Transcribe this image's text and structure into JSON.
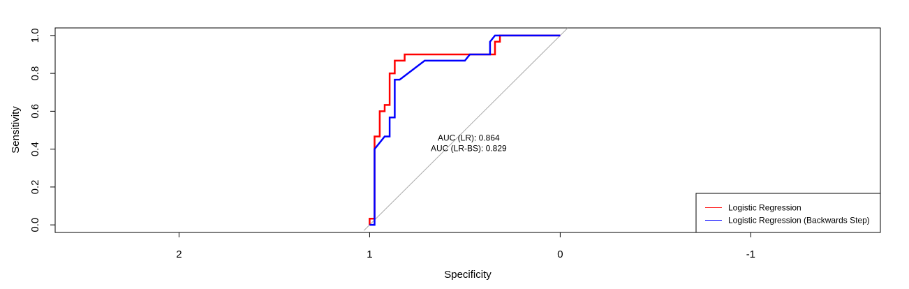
{
  "chart_data": {
    "type": "line",
    "title": "",
    "xlabel": "Specificity",
    "ylabel": "Sensitivity",
    "x_reversed": true,
    "xlim": [
      2.65,
      -1.68
    ],
    "ylim": [
      -0.04,
      1.04
    ],
    "xticks": [
      2,
      1,
      0,
      -1
    ],
    "xtick_labels": [
      "2",
      "1",
      "0",
      "-1"
    ],
    "yticks": [
      0.0,
      0.2,
      0.4,
      0.6,
      0.8,
      1.0
    ],
    "ytick_labels": [
      "0.0",
      "0.2",
      "0.4",
      "0.6",
      "0.8",
      "1.0"
    ],
    "grid": false,
    "legend_position": "bottom-right",
    "annotations": [
      {
        "text": "AUC (LR):  0.864",
        "x": 0.48,
        "y": 0.46
      },
      {
        "text": "AUC (LR-BS):  0.829",
        "x": 0.48,
        "y": 0.405
      }
    ],
    "reference_line": {
      "color": "#aaaaaa",
      "from": [
        1,
        0
      ],
      "to": [
        0,
        1
      ]
    },
    "series": [
      {
        "name": "Logistic Regression",
        "color": "#ff0000",
        "points": [
          [
            1.0,
            0.0
          ],
          [
            1.0,
            0.033
          ],
          [
            0.974,
            0.033
          ],
          [
            0.974,
            0.467
          ],
          [
            0.947,
            0.467
          ],
          [
            0.947,
            0.6
          ],
          [
            0.921,
            0.6
          ],
          [
            0.921,
            0.633
          ],
          [
            0.895,
            0.633
          ],
          [
            0.895,
            0.8
          ],
          [
            0.868,
            0.8
          ],
          [
            0.868,
            0.867
          ],
          [
            0.816,
            0.867
          ],
          [
            0.816,
            0.9
          ],
          [
            0.342,
            0.9
          ],
          [
            0.342,
            0.967
          ],
          [
            0.316,
            0.967
          ],
          [
            0.316,
            1.0
          ],
          [
            0.0,
            1.0
          ]
        ]
      },
      {
        "name": "Logistic Regression (Backwards Step)",
        "color": "#0000ff",
        "points": [
          [
            1.0,
            0.0
          ],
          [
            0.974,
            0.0
          ],
          [
            0.974,
            0.4
          ],
          [
            0.921,
            0.467
          ],
          [
            0.895,
            0.467
          ],
          [
            0.895,
            0.567
          ],
          [
            0.868,
            0.567
          ],
          [
            0.868,
            0.767
          ],
          [
            0.842,
            0.767
          ],
          [
            0.711,
            0.867
          ],
          [
            0.5,
            0.867
          ],
          [
            0.474,
            0.9
          ],
          [
            0.368,
            0.9
          ],
          [
            0.368,
            0.967
          ],
          [
            0.342,
            1.0
          ],
          [
            0.0,
            1.0
          ]
        ]
      }
    ]
  }
}
